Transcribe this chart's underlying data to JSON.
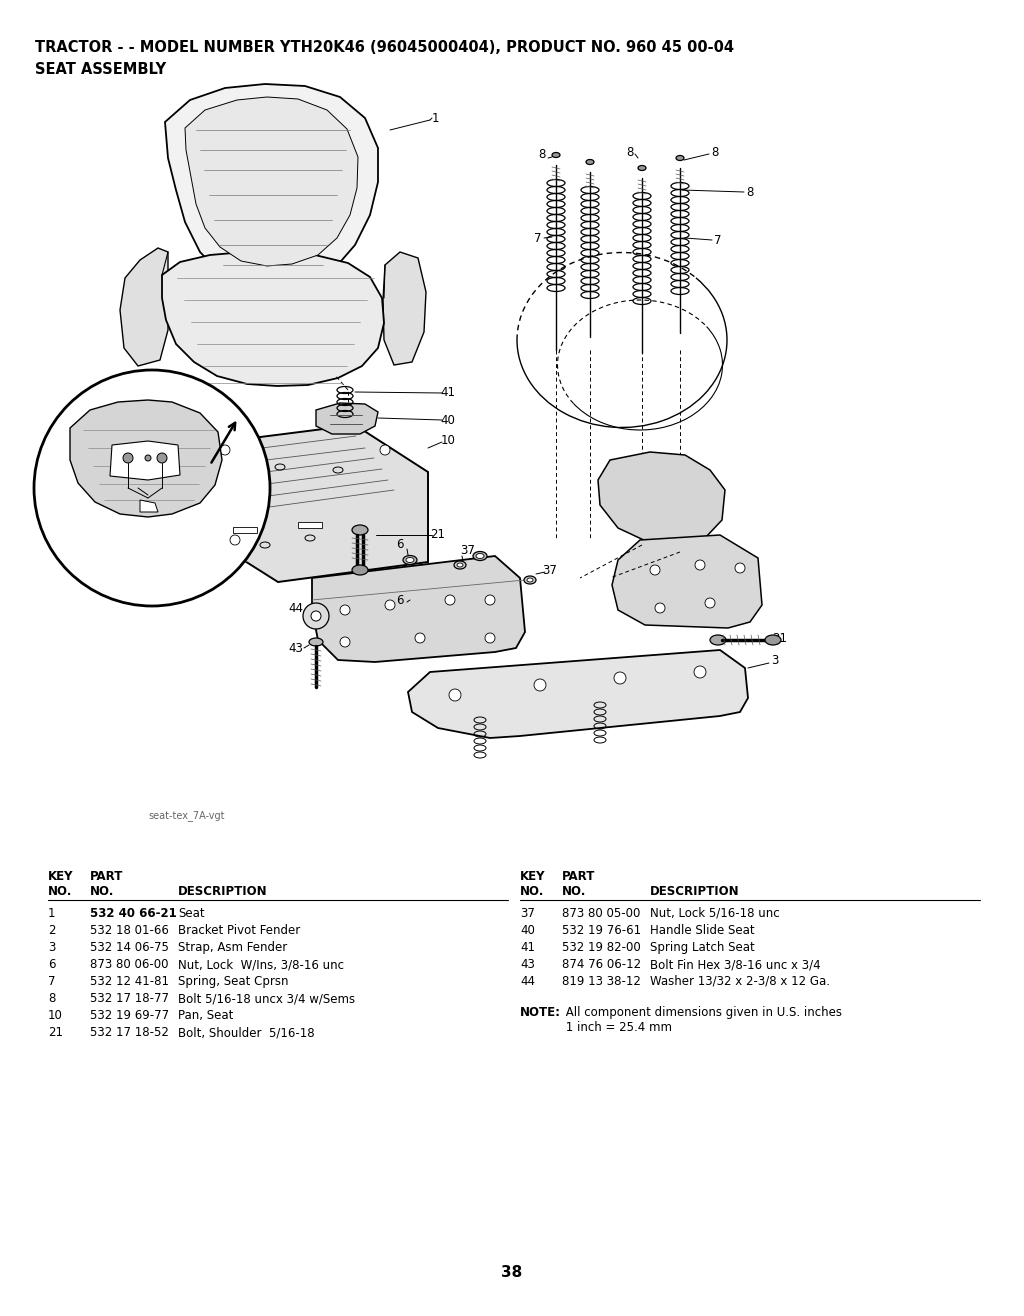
{
  "title_line1": "TRACTOR - - MODEL NUMBER YTH20K46 (96045000404), PRODUCT NO. 960 45 00-04",
  "title_line2": "SEAT ASSEMBLY",
  "background_color": "#ffffff",
  "page_number": "38",
  "image_credit": "seat-tex_7A-vgt",
  "parts_left": [
    {
      "key": "1",
      "part": "532 40 66-21",
      "desc": "Seat",
      "bold_part": true
    },
    {
      "key": "2",
      "part": "532 18 01-66",
      "desc": "Bracket Pivot Fender",
      "bold_part": false
    },
    {
      "key": "3",
      "part": "532 14 06-75",
      "desc": "Strap, Asm Fender",
      "bold_part": false
    },
    {
      "key": "6",
      "part": "873 80 06-00",
      "desc": "Nut, Lock  W/Ins, 3/8-16 unc",
      "bold_part": false
    },
    {
      "key": "7",
      "part": "532 12 41-81",
      "desc": "Spring, Seat Cprsn",
      "bold_part": false
    },
    {
      "key": "8",
      "part": "532 17 18-77",
      "desc": "Bolt 5/16-18 uncx 3/4 w/Sems",
      "bold_part": false
    },
    {
      "key": "10",
      "part": "532 19 69-77",
      "desc": "Pan, Seat",
      "bold_part": false
    },
    {
      "key": "21",
      "part": "532 17 18-52",
      "desc": "Bolt, Shoulder  5/16-18",
      "bold_part": false
    }
  ],
  "parts_right": [
    {
      "key": "37",
      "part": "873 80 05-00",
      "desc": "Nut, Lock 5/16-18 unc",
      "bold_part": false
    },
    {
      "key": "40",
      "part": "532 19 76-61",
      "desc": "Handle Slide Seat",
      "bold_part": false
    },
    {
      "key": "41",
      "part": "532 19 82-00",
      "desc": "Spring Latch Seat",
      "bold_part": false
    },
    {
      "key": "43",
      "part": "874 76 06-12",
      "desc": "Bolt Fin Hex 3/8-16 unc x 3/4",
      "bold_part": false
    },
    {
      "key": "44",
      "part": "819 13 38-12",
      "desc": "Washer 13/32 x 2-3/8 x 12 Ga.",
      "bold_part": false
    }
  ],
  "text_color": "#000000",
  "title_fontsize": 10.5,
  "header_fontsize": 8.5,
  "table_fontsize": 8.5,
  "note_bold": "NOTE:",
  "note_text1": "  All component dimensions given in U.S. inches",
  "note_text2": "         1 inch = 25.4 mm"
}
